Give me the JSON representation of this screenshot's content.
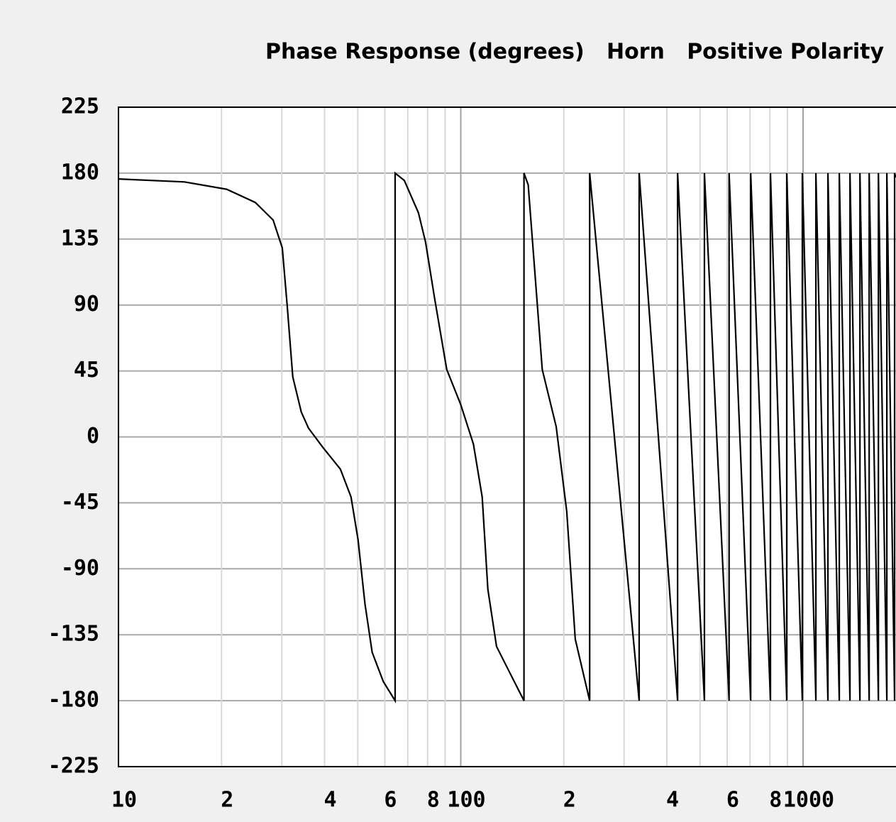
{
  "chart_data": {
    "type": "line",
    "title": "Phase Response (degrees)   Horn   Positive Polarity",
    "xscale": "log",
    "xlim": [
      10,
      1867
    ],
    "ylim": [
      -225,
      225
    ],
    "yticks": [
      225,
      180,
      135,
      90,
      45,
      0,
      -45,
      -90,
      -135,
      -180,
      -225
    ],
    "xticks": [
      10,
      {
        "value": 20,
        "label": "2"
      },
      {
        "value": 40,
        "label": "4"
      },
      {
        "value": 60,
        "label": "6"
      },
      {
        "value": 80,
        "label": "8"
      },
      100,
      {
        "value": 200,
        "label": "2"
      },
      {
        "value": 400,
        "label": "4"
      },
      {
        "value": 600,
        "label": "6"
      },
      {
        "value": 800,
        "label": "8"
      },
      1000
    ],
    "xminor": [
      30,
      50,
      70,
      90,
      300,
      500,
      700,
      900
    ],
    "grid": true,
    "series": [
      {
        "color": "#000000",
        "x": [
          10,
          15.6,
          20.7,
          25.1,
          28.3,
          30.1,
          31.1,
          32.3,
          34.2,
          35.9,
          39.5,
          44.5,
          47.8,
          50.1,
          52.5,
          55.1,
          59.4,
          64.3,
          64.3,
          68.4,
          75.2,
          78.9,
          83.8,
          91,
          100,
          108.9,
          115.5,
          120,
          127.2,
          139.8,
          153,
          153,
          157.4,
          173,
          190,
          204,
          216,
          238,
          238,
          332,
          332,
          430,
          430,
          515,
          515,
          608,
          608,
          703,
          703,
          803,
          803,
          896,
          896,
          995,
          995,
          1090,
          1090,
          1182,
          1182,
          1276,
          1276,
          1371,
          1371,
          1466,
          1466,
          1560,
          1560,
          1660,
          1660,
          1757,
          1757,
          1851,
          1851,
          1867
        ],
        "values": [
          176,
          174,
          169,
          160,
          148,
          129,
          90,
          41,
          17,
          6,
          -7,
          -22,
          -41,
          -70,
          -114,
          -147,
          -167,
          -180,
          180,
          175,
          153,
          133,
          95,
          46,
          22,
          -5,
          -41,
          -104,
          -143,
          -162,
          -180,
          180,
          172,
          46,
          7,
          -51,
          -138,
          -180,
          180,
          -180,
          180,
          -180,
          180,
          -180,
          180,
          -180,
          180,
          -180,
          180,
          -180,
          180,
          -180,
          180,
          -180,
          180,
          -180,
          180,
          -180,
          180,
          -180,
          180,
          -180,
          180,
          -180,
          180,
          -180,
          180,
          -180,
          180,
          -180,
          180,
          -180,
          180,
          177
        ]
      }
    ]
  }
}
